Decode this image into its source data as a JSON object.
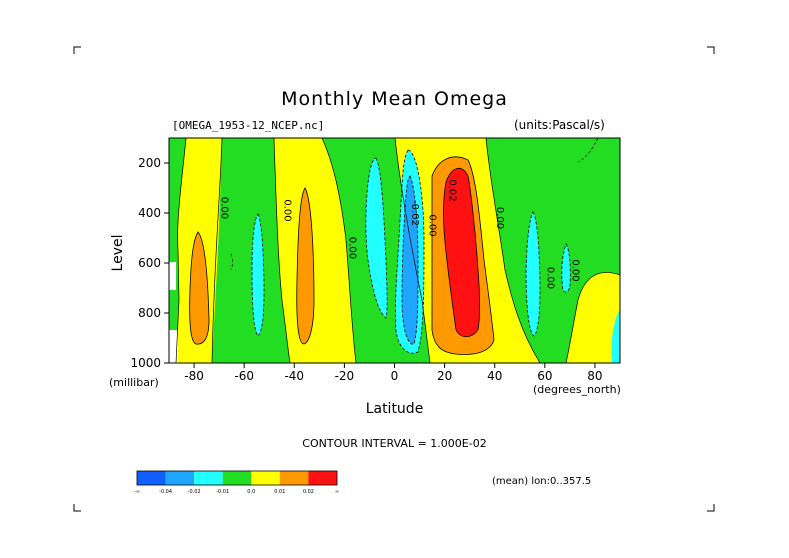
{
  "title": "Monthly Mean Omega",
  "source_file": "[OMEGA_1953-12_NCEP.nc]",
  "units_label": "(units:Pascal/s)",
  "contour_interval_label": "CONTOUR INTERVAL = 1.000E-02",
  "mean_note": "(mean) lon:0..357.5",
  "chart_data": {
    "type": "heatmap",
    "title": "Monthly Mean Omega",
    "xlabel": "Latitude",
    "xunit": "(degrees_north)",
    "ylabel": "Level",
    "yunit": "(millibar)",
    "xlim": [
      -90,
      90
    ],
    "ylim": [
      1000,
      100
    ],
    "xticks": [
      -80,
      -60,
      -40,
      -20,
      0,
      20,
      40,
      60,
      80
    ],
    "yticks": [
      200,
      400,
      600,
      800,
      1000
    ],
    "colorbar": {
      "colors": [
        "#1060ff",
        "#1ea5ff",
        "#22ffff",
        "#22dd22",
        "#ffff00",
        "#ff9900",
        "#ff1111"
      ],
      "boundaries": [
        "-0.04",
        "-0.02",
        "-0.01",
        "0.0",
        "0.01",
        "0.02"
      ],
      "ends": [
        "-∞",
        "∞"
      ]
    },
    "contour_labels": [
      {
        "text": "0.00",
        "lat": -69,
        "level": 380
      },
      {
        "text": "0.00",
        "lat": -44,
        "level": 390
      },
      {
        "text": "0.00",
        "lat": -18,
        "level": 540
      },
      {
        "text": "-0.02",
        "lat": 7,
        "level": 400
      },
      {
        "text": "0.00",
        "lat": 14,
        "level": 450
      },
      {
        "text": "0.02",
        "lat": 22,
        "level": 310
      },
      {
        "text": "0.00",
        "lat": 41,
        "level": 420
      },
      {
        "text": "0.00",
        "lat": 61,
        "level": 660
      },
      {
        "text": "0.00",
        "lat": 71,
        "level": 630
      }
    ]
  }
}
